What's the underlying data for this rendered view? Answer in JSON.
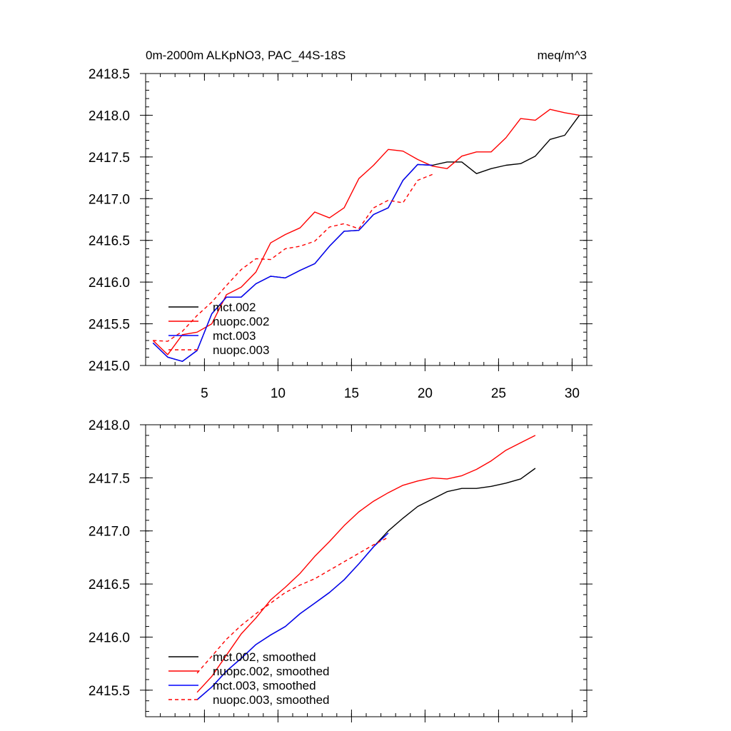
{
  "chart_data": [
    {
      "type": "line",
      "title": "0m-2000m ALKpNO3, PAC_44S-18S",
      "units": "meq/m^3",
      "xlim": [
        1,
        31
      ],
      "ylim": [
        2415.0,
        2418.5
      ],
      "xticks": [
        5,
        10,
        15,
        20,
        25,
        30
      ],
      "xtick_labels": [
        "5",
        "10",
        "15",
        "20",
        "25",
        "30"
      ],
      "yticks": [
        2415.0,
        2415.5,
        2416.0,
        2416.5,
        2417.0,
        2417.5,
        2418.0,
        2418.5
      ],
      "ytick_labels": [
        "2415.0",
        "2415.5",
        "2416.0",
        "2416.5",
        "2417.0",
        "2417.5",
        "2418.0",
        "2418.5"
      ],
      "legend_position": "lower-left",
      "series": [
        {
          "name": "mct.002",
          "color": "#000000",
          "dash": "solid",
          "x": [
            1.5,
            2.5,
            3.5,
            4.5,
            5.5,
            6.5,
            7.5,
            8.5,
            9.5,
            10.5,
            11.5,
            12.5,
            13.5,
            14.5,
            15.5,
            16.5,
            17.5,
            18.5,
            19.5,
            20.5,
            21.5,
            22.5,
            23.5,
            24.5,
            25.5,
            26.5,
            27.5,
            28.5,
            29.5,
            30.5
          ],
          "y": [
            2415.27,
            2415.1,
            2415.05,
            2415.18,
            2415.62,
            2415.82,
            2415.82,
            2415.98,
            2416.07,
            2416.05,
            2416.14,
            2416.22,
            2416.43,
            2416.61,
            2416.62,
            2416.81,
            2416.89,
            2417.22,
            2417.41,
            2417.4,
            2417.44,
            2417.44,
            2417.3,
            2417.36,
            2417.4,
            2417.42,
            2417.51,
            2417.71,
            2417.76,
            2418.0
          ]
        },
        {
          "name": "nuopc.002",
          "color": "#ff0000",
          "dash": "solid",
          "x": [
            1.5,
            2.5,
            3.5,
            4.5,
            5.5,
            6.5,
            7.5,
            8.5,
            9.5,
            10.5,
            11.5,
            12.5,
            13.5,
            14.5,
            15.5,
            16.5,
            17.5,
            18.5,
            19.5,
            20.5,
            21.5,
            22.5,
            23.5,
            24.5,
            25.5,
            26.5,
            27.5,
            28.5,
            29.5,
            30.5
          ],
          "y": [
            2415.3,
            2415.13,
            2415.37,
            2415.4,
            2415.5,
            2415.85,
            2415.94,
            2416.12,
            2416.47,
            2416.57,
            2416.65,
            2416.84,
            2416.77,
            2416.89,
            2417.24,
            2417.4,
            2417.59,
            2417.57,
            2417.47,
            2417.39,
            2417.36,
            2417.51,
            2417.56,
            2417.56,
            2417.73,
            2417.96,
            2417.94,
            2418.07,
            2418.03,
            2418.0
          ]
        },
        {
          "name": "mct.003",
          "color": "#0000ff",
          "dash": "solid",
          "x": [
            1.5,
            2.5,
            3.5,
            4.5,
            5.5,
            6.5,
            7.5,
            8.5,
            9.5,
            10.5,
            11.5,
            12.5,
            13.5,
            14.5,
            15.5,
            16.5,
            17.5,
            18.5,
            19.5,
            20.5
          ],
          "y": [
            2415.27,
            2415.1,
            2415.05,
            2415.18,
            2415.62,
            2415.82,
            2415.82,
            2415.98,
            2416.07,
            2416.05,
            2416.14,
            2416.22,
            2416.43,
            2416.61,
            2416.62,
            2416.81,
            2416.89,
            2417.22,
            2417.41,
            2417.4
          ]
        },
        {
          "name": "nuopc.003",
          "color": "#ff0000",
          "dash": "dashed",
          "x": [
            1.5,
            2.5,
            3.5,
            4.5,
            5.5,
            6.5,
            7.5,
            8.5,
            9.5,
            10.5,
            11.5,
            12.5,
            13.5,
            14.5,
            15.5,
            16.5,
            17.5,
            18.5,
            19.5,
            20.5
          ],
          "y": [
            2415.3,
            2415.29,
            2415.41,
            2415.6,
            2415.76,
            2415.96,
            2416.15,
            2416.28,
            2416.27,
            2416.4,
            2416.43,
            2416.49,
            2416.66,
            2416.7,
            2416.64,
            2416.89,
            2416.98,
            2416.95,
            2417.22,
            2417.29
          ]
        }
      ]
    },
    {
      "type": "line",
      "title": "",
      "xlim": [
        1,
        31
      ],
      "ylim": [
        2415.25,
        2418.0
      ],
      "xticks": [
        5,
        10,
        15,
        20,
        25,
        30
      ],
      "xtick_labels": [
        "",
        "",
        "",
        "",
        "",
        ""
      ],
      "yticks": [
        2415.5,
        2416.0,
        2416.5,
        2417.0,
        2417.5,
        2418.0
      ],
      "ytick_labels": [
        "2415.5",
        "2416.0",
        "2416.5",
        "2417.0",
        "2417.5",
        "2418.0"
      ],
      "legend_position": "lower-left",
      "series": [
        {
          "name": "mct.002, smoothed",
          "color": "#000000",
          "dash": "solid",
          "x": [
            4.5,
            5.5,
            6.5,
            7.5,
            8.5,
            9.5,
            10.5,
            11.5,
            12.5,
            13.5,
            14.5,
            15.5,
            16.5,
            17.5,
            18.5,
            19.5,
            20.5,
            21.5,
            22.5,
            23.5,
            24.5,
            25.5,
            26.5,
            27.5
          ],
          "y": [
            2415.41,
            2415.53,
            2415.68,
            2415.8,
            2415.93,
            2416.02,
            2416.1,
            2416.22,
            2416.32,
            2416.42,
            2416.54,
            2416.69,
            2416.85,
            2417.0,
            2417.12,
            2417.23,
            2417.3,
            2417.37,
            2417.4,
            2417.4,
            2417.42,
            2417.45,
            2417.49,
            2417.59
          ]
        },
        {
          "name": "nuopc.002, smoothed",
          "color": "#ff0000",
          "dash": "solid",
          "x": [
            4.5,
            5.5,
            6.5,
            7.5,
            8.5,
            9.5,
            10.5,
            11.5,
            12.5,
            13.5,
            14.5,
            15.5,
            16.5,
            17.5,
            18.5,
            19.5,
            20.5,
            21.5,
            22.5,
            23.5,
            24.5,
            25.5,
            26.5,
            27.5
          ],
          "y": [
            2415.48,
            2415.63,
            2415.83,
            2416.03,
            2416.18,
            2416.35,
            2416.47,
            2416.6,
            2416.76,
            2416.9,
            2417.05,
            2417.18,
            2417.28,
            2417.36,
            2417.43,
            2417.47,
            2417.5,
            2417.49,
            2417.52,
            2417.58,
            2417.66,
            2417.76,
            2417.83,
            2417.9
          ]
        },
        {
          "name": "mct.003, smoothed",
          "color": "#0000ff",
          "dash": "solid",
          "x": [
            4.5,
            5.5,
            6.5,
            7.5,
            8.5,
            9.5,
            10.5,
            11.5,
            12.5,
            13.5,
            14.5,
            15.5,
            16.5,
            17.5
          ],
          "y": [
            2415.41,
            2415.53,
            2415.68,
            2415.8,
            2415.93,
            2416.02,
            2416.1,
            2416.22,
            2416.32,
            2416.42,
            2416.54,
            2416.69,
            2416.85,
            2416.98
          ]
        },
        {
          "name": "nuopc.003, smoothed",
          "color": "#ff0000",
          "dash": "dashed",
          "x": [
            4.5,
            5.5,
            6.5,
            7.5,
            8.5,
            9.5,
            10.5,
            11.5,
            12.5,
            13.5,
            14.5,
            15.5,
            16.5,
            17.5
          ],
          "y": [
            2415.66,
            2415.82,
            2415.98,
            2416.11,
            2416.22,
            2416.32,
            2416.42,
            2416.49,
            2416.55,
            2416.63,
            2416.71,
            2416.79,
            2416.87,
            2416.94
          ]
        }
      ]
    }
  ]
}
